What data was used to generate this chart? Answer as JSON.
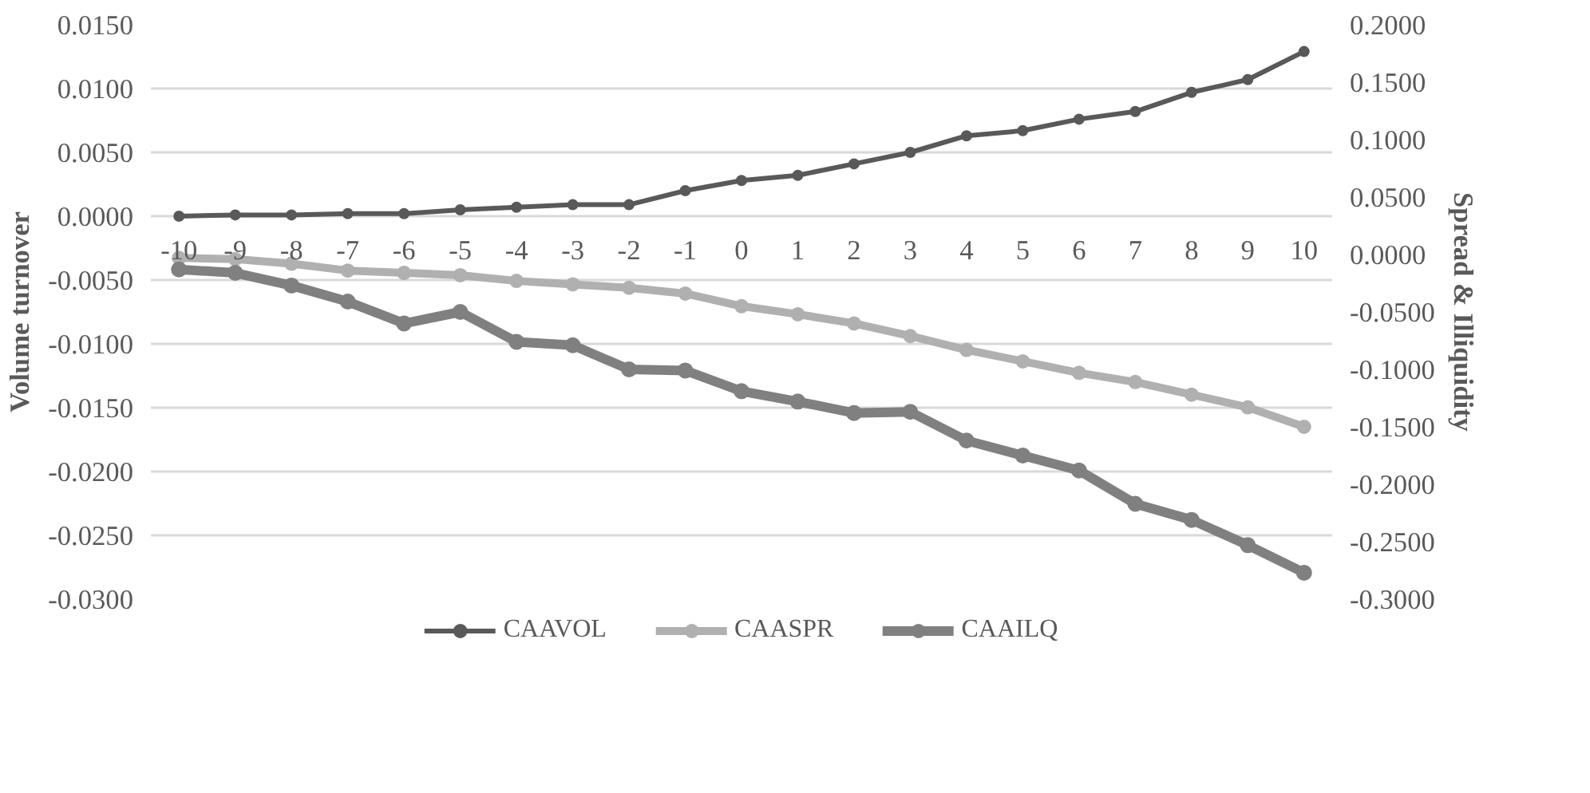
{
  "chart_data": {
    "type": "line",
    "categories": [
      "-10",
      "-9",
      "-8",
      "-7",
      "-6",
      "-5",
      "-4",
      "-3",
      "-2",
      "-1",
      "0",
      "1",
      "2",
      "3",
      "4",
      "5",
      "6",
      "7",
      "8",
      "9",
      "10"
    ],
    "series": [
      {
        "name": "CAAVOL",
        "color": "#595959",
        "values": [
          0.0,
          0.0001,
          0.0001,
          0.0002,
          0.0002,
          0.0005,
          0.0007,
          0.0009,
          0.0009,
          0.002,
          0.0028,
          0.0032,
          0.0041,
          0.005,
          0.0063,
          0.0067,
          0.0076,
          0.0082,
          0.0097,
          0.0107,
          0.0129
        ]
      },
      {
        "name": "CAASPR",
        "color": "#b0b0b0",
        "axis": "y2",
        "values": [
          -0.003,
          -0.004,
          -0.008,
          -0.014,
          -0.016,
          -0.018,
          -0.023,
          -0.026,
          -0.029,
          -0.034,
          -0.045,
          -0.052,
          -0.06,
          -0.071,
          -0.083,
          -0.093,
          -0.103,
          -0.111,
          -0.122,
          -0.133,
          -0.15
        ]
      },
      {
        "name": "CAAILQ",
        "color": "#808080",
        "axis": "y2",
        "values": [
          -0.013,
          -0.016,
          -0.027,
          -0.041,
          -0.06,
          -0.05,
          -0.076,
          -0.079,
          -0.1,
          -0.101,
          -0.119,
          -0.128,
          -0.138,
          -0.137,
          -0.162,
          -0.175,
          -0.188,
          -0.217,
          -0.231,
          -0.253,
          -0.277
        ]
      }
    ],
    "ylabel": "Volume turnover",
    "y2label": "Spread & Illiquidity",
    "ylim": [
      -0.03,
      0.015
    ],
    "yticks": [
      {
        "value": -0.03,
        "label": "-0.0300"
      },
      {
        "value": -0.025,
        "label": "-0.0250"
      },
      {
        "value": -0.02,
        "label": "-0.0200"
      },
      {
        "value": -0.015,
        "label": "-0.0150"
      },
      {
        "value": -0.01,
        "label": "-0.0100"
      },
      {
        "value": -0.005,
        "label": "-0.0050"
      },
      {
        "value": 0,
        "label": "0.0000"
      },
      {
        "value": 0.005,
        "label": "0.0050"
      },
      {
        "value": 0.01,
        "label": "0.0100"
      },
      {
        "value": 0.015,
        "label": "0.0150"
      }
    ],
    "y2lim": [
      -0.3,
      0.2
    ],
    "y2ticks": [
      {
        "value": -0.3,
        "label": "-0.3000"
      },
      {
        "value": -0.25,
        "label": "-0.2500"
      },
      {
        "value": -0.2,
        "label": "-0.2000"
      },
      {
        "value": -0.15,
        "label": "-0.1500"
      },
      {
        "value": -0.1,
        "label": "-0.1000"
      },
      {
        "value": -0.05,
        "label": "-0.0500"
      },
      {
        "value": 0,
        "label": "0.0000"
      },
      {
        "value": 0.05,
        "label": "0.0500"
      },
      {
        "value": 0.1,
        "label": "0.1000"
      },
      {
        "value": 0.15,
        "label": "0.1500"
      },
      {
        "value": 0.2,
        "label": "0.2000"
      }
    ],
    "grid": "y",
    "legend": "bottom",
    "marker": "circle"
  }
}
